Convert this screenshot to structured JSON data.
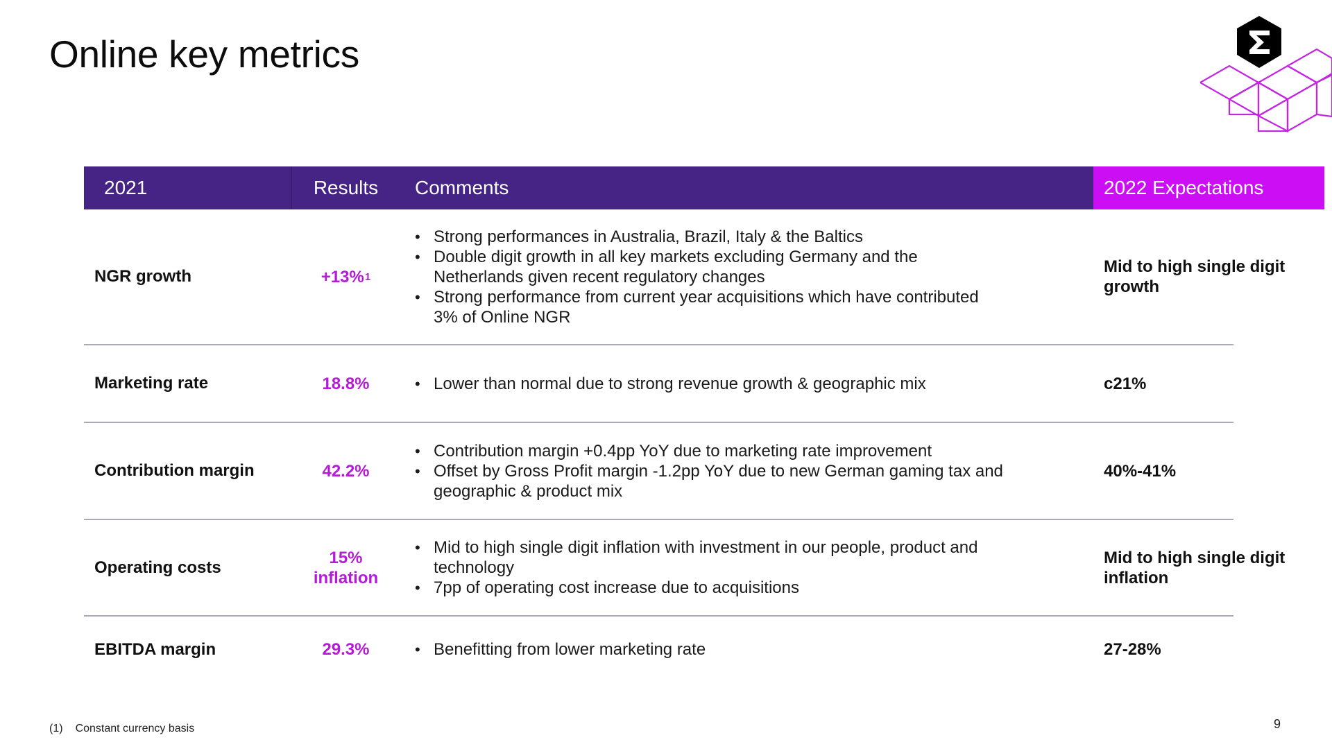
{
  "slide": {
    "title": "Online key metrics",
    "page_number": "9",
    "footnote": {
      "number": "(1)",
      "text": "Constant currency basis"
    },
    "logo": {
      "icon": "sigma-icon",
      "colors": {
        "hexagon": "#000000",
        "lattice": "#c226e0"
      }
    }
  },
  "table": {
    "header": {
      "year": "2021",
      "results": "Results",
      "comments": "Comments",
      "expectations": "2022 Expectations"
    },
    "colors": {
      "header_bg": "#452485",
      "expectations_bg": "#cc0ef5",
      "result_text": "#b51ad8"
    },
    "rows": [
      {
        "metric": "NGR growth",
        "result": "+13%",
        "result_sup": "1",
        "comments": [
          "Strong performances in Australia, Brazil, Italy & the Baltics",
          "Double digit growth in all key markets excluding Germany and the Netherlands given recent regulatory changes",
          "Strong performance from current year acquisitions which have contributed 3% of Online NGR"
        ],
        "expectation": "Mid to high single digit growth"
      },
      {
        "metric": "Marketing rate",
        "result": "18.8%",
        "comments": [
          "Lower than normal due to strong revenue growth & geographic mix"
        ],
        "expectation": "c21%"
      },
      {
        "metric": "Contribution margin",
        "result": "42.2%",
        "comments": [
          "Contribution margin +0.4pp YoY due to marketing rate improvement",
          "Offset by Gross Profit margin -1.2pp YoY due to new German gaming tax and geographic &  product mix"
        ],
        "expectation": "40%-41%"
      },
      {
        "metric": "Operating costs",
        "result": "15% inflation",
        "comments": [
          "Mid to high single digit inflation with investment in our people, product and technology",
          "7pp of operating cost increase due to acquisitions"
        ],
        "expectation": "Mid to high single digit inflation"
      },
      {
        "metric": "EBITDA margin",
        "result": "29.3%",
        "comments": [
          "Benefitting from lower marketing rate"
        ],
        "expectation": "27-28%"
      }
    ]
  }
}
